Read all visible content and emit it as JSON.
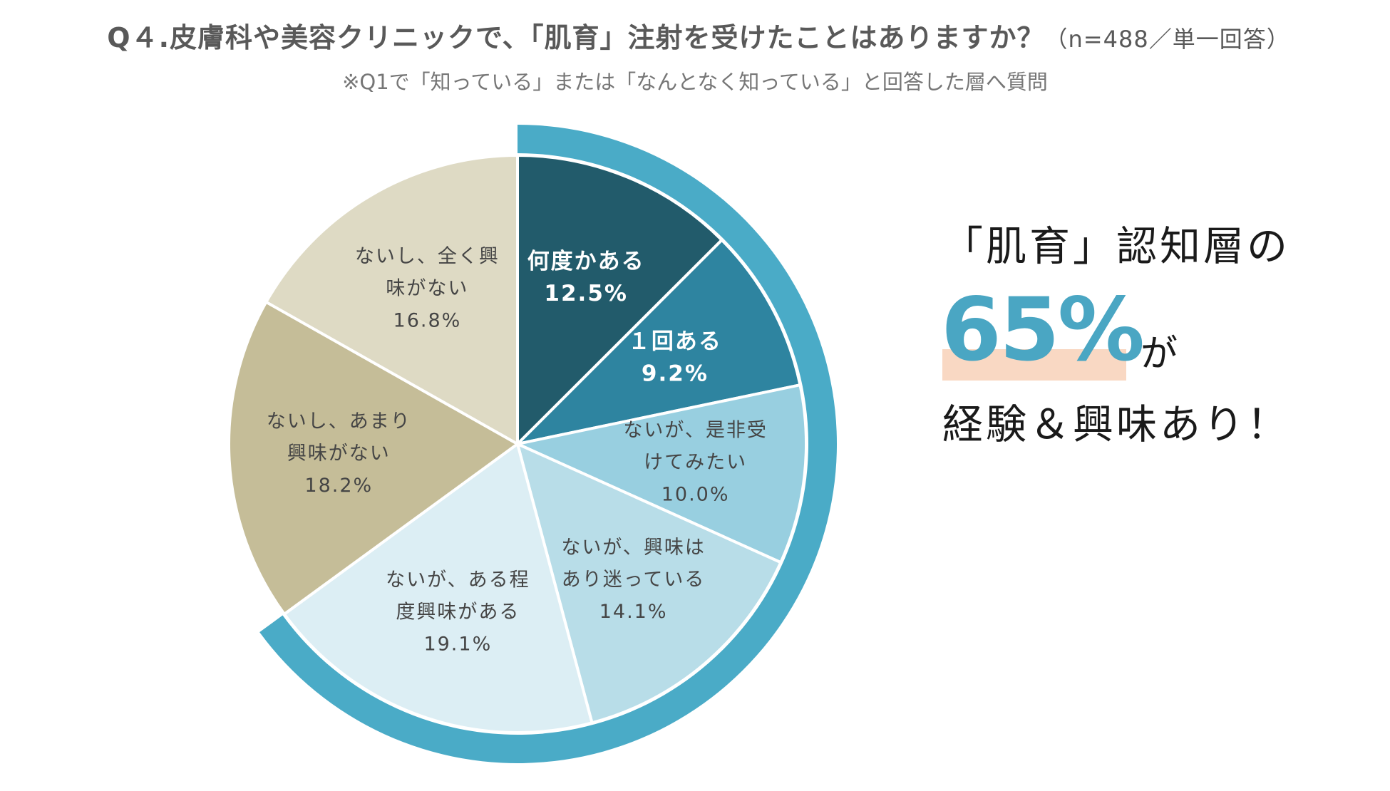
{
  "header": {
    "title": "Q４.皮膚科や美容クリニックで、「肌育」注射を受けたことはありますか？",
    "sample_note": "（n=488／単一回答）",
    "subtitle": "※Q1で「知っている」または「なんとなく知っている」と回答した層へ質問"
  },
  "chart_data": {
    "type": "pie",
    "title": "Q４.皮膚科や美容クリニックで、「肌育」注射を受けたことはありますか？",
    "slices": [
      {
        "label": "何度かある",
        "value": 12.5,
        "value_label": "12.5%",
        "color": "#225b6b",
        "text_color": "#ffffff"
      },
      {
        "label": "１回ある",
        "value": 9.2,
        "value_label": "9.2%",
        "color": "#2e84a0",
        "text_color": "#ffffff"
      },
      {
        "label": "ないが、是非受けてみたい",
        "value": 10.0,
        "value_label": "10.0%",
        "color": "#98cfe0",
        "text_color": "#454545"
      },
      {
        "label": "ないが、興味はあり迷っている",
        "value": 14.1,
        "value_label": "14.1%",
        "color": "#b8dde8",
        "text_color": "#454545"
      },
      {
        "label": "ないが、ある程度興味がある",
        "value": 19.1,
        "value_label": "19.1%",
        "color": "#dceef4",
        "text_color": "#454545"
      },
      {
        "label": "ないし、あまり興味がない",
        "value": 18.2,
        "value_label": "18.2%",
        "color": "#c5bd98",
        "text_color": "#454545"
      },
      {
        "label": "ないし、全く興味がない",
        "value": 16.8,
        "value_label": "16.8%",
        "color": "#dedac4",
        "text_color": "#454545"
      }
    ],
    "highlight_ring": {
      "from_slice": 0,
      "to_slice": 4,
      "color": "#4aabc7"
    }
  },
  "callout": {
    "line1": "「肌育」認知層の",
    "percent": "65%",
    "suffix": "が",
    "line3": "経験＆興味あり！"
  }
}
